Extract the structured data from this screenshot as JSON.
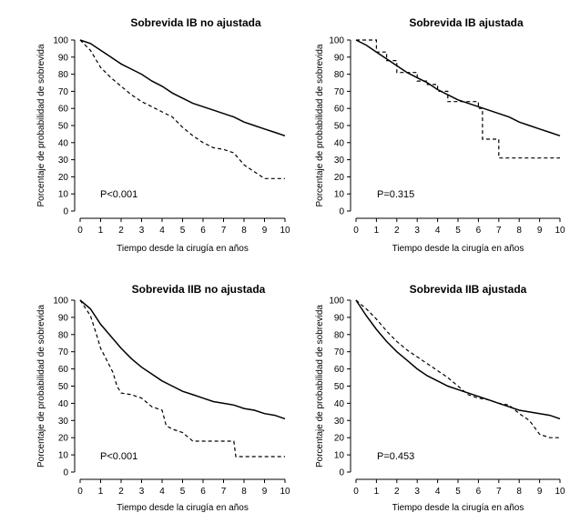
{
  "chart_data": [
    {
      "type": "line",
      "title": "Sobrevida IB no ajustada",
      "xlabel": "Tiempo desde la cirugía en años",
      "ylabel": "Porcentaje de probabilidad de sobrevida",
      "xlim": [
        0,
        10
      ],
      "ylim": [
        0,
        100
      ],
      "x_ticks": [
        0,
        1,
        2,
        3,
        4,
        5,
        6,
        7,
        8,
        9,
        10
      ],
      "y_ticks": [
        0,
        10,
        20,
        30,
        40,
        50,
        60,
        70,
        80,
        90,
        100
      ],
      "annotation": "P<0.001",
      "series": [
        {
          "name": "solid",
          "style": "solid",
          "x": [
            0,
            0.5,
            1,
            1.5,
            2,
            2.5,
            3,
            3.5,
            4,
            4.5,
            5,
            5.5,
            6,
            6.5,
            7,
            7.5,
            8,
            8.5,
            9,
            9.5,
            10
          ],
          "y": [
            100,
            98,
            94,
            90,
            86,
            83,
            80,
            76,
            73,
            69,
            66,
            63,
            61,
            59,
            57,
            55,
            52,
            50,
            48,
            46,
            44
          ]
        },
        {
          "name": "dashed",
          "style": "dashed",
          "x": [
            0,
            0.5,
            1,
            1.5,
            2,
            2.5,
            3,
            3.5,
            4,
            4.5,
            5,
            5.5,
            6,
            6.5,
            7,
            7.5,
            8,
            8.5,
            9,
            9.5,
            10
          ],
          "y": [
            100,
            94,
            84,
            78,
            73,
            68,
            64,
            61,
            58,
            55,
            49,
            44,
            40,
            37,
            36,
            34,
            27,
            23,
            19,
            19,
            19
          ]
        }
      ]
    },
    {
      "type": "line",
      "title": "Sobrevida IB ajustada",
      "xlabel": "Tiempo desde la cirugía en años",
      "ylabel": "Porcentaje de probabilidad de sobrevida",
      "xlim": [
        0,
        10
      ],
      "ylim": [
        0,
        100
      ],
      "x_ticks": [
        0,
        1,
        2,
        3,
        4,
        5,
        6,
        7,
        8,
        9,
        10
      ],
      "y_ticks": [
        0,
        10,
        20,
        30,
        40,
        50,
        60,
        70,
        80,
        90,
        100
      ],
      "annotation": "P=0.315",
      "series": [
        {
          "name": "solid",
          "style": "solid",
          "x": [
            0,
            0.5,
            1,
            1.5,
            2,
            2.5,
            3,
            3.5,
            4,
            4.5,
            5,
            5.5,
            6,
            6.5,
            7,
            7.5,
            8,
            8.5,
            9,
            9.5,
            10
          ],
          "y": [
            100,
            97,
            93,
            89,
            85,
            81,
            78,
            75,
            71,
            68,
            65,
            63,
            61,
            59,
            57,
            55,
            52,
            50,
            48,
            46,
            44
          ]
        },
        {
          "name": "dashed",
          "style": "dashed",
          "x": [
            0,
            1,
            1,
            1.5,
            1.5,
            2,
            2,
            3,
            3,
            3.5,
            3.5,
            4,
            4,
            4.5,
            4.5,
            5,
            5,
            5.5,
            5.5,
            6,
            6,
            6.2,
            6.2,
            7,
            7,
            10
          ],
          "y": [
            100,
            100,
            93,
            93,
            88,
            88,
            81,
            81,
            76,
            76,
            74,
            74,
            70,
            70,
            64,
            64,
            64,
            64,
            64,
            64,
            60,
            60,
            42,
            42,
            31,
            31
          ]
        }
      ]
    },
    {
      "type": "line",
      "title": "Sobrevida IIB no ajustada",
      "xlabel": "Tiempo desde la cirugía en años",
      "ylabel": "Porcentaje de probabilidad de sobrevida",
      "xlim": [
        0,
        10
      ],
      "ylim": [
        0,
        100
      ],
      "x_ticks": [
        0,
        1,
        2,
        3,
        4,
        5,
        6,
        7,
        8,
        9,
        10
      ],
      "y_ticks": [
        0,
        10,
        20,
        30,
        40,
        50,
        60,
        70,
        80,
        90,
        100
      ],
      "annotation": "P<0.001",
      "series": [
        {
          "name": "solid",
          "style": "solid",
          "x": [
            0,
            0.5,
            1,
            1.5,
            2,
            2.5,
            3,
            3.5,
            4,
            4.5,
            5,
            5.5,
            6,
            6.5,
            7,
            7.5,
            8,
            8.5,
            9,
            9.5,
            10
          ],
          "y": [
            100,
            95,
            86,
            79,
            72,
            66,
            61,
            57,
            53,
            50,
            47,
            45,
            43,
            41,
            40,
            39,
            37,
            36,
            34,
            33,
            31
          ]
        },
        {
          "name": "dashed",
          "style": "dashed",
          "x": [
            0,
            0.5,
            0.8,
            1,
            1.3,
            1.6,
            1.8,
            2,
            2.5,
            3,
            3.5,
            4,
            4.2,
            4.5,
            5,
            5.5,
            6,
            6.5,
            7,
            7.5,
            7.6,
            8,
            9,
            10
          ],
          "y": [
            100,
            91,
            80,
            72,
            65,
            58,
            50,
            46,
            45,
            43,
            38,
            36,
            27,
            25,
            23,
            18,
            18,
            18,
            18,
            18,
            9,
            9,
            9,
            9
          ]
        }
      ]
    },
    {
      "type": "line",
      "title": "Sobrevida IIB ajustada",
      "xlabel": "Tiempo desde la cirugía en años",
      "ylabel": "Porcentaje de probabilidad de sobrevida",
      "xlim": [
        0,
        10
      ],
      "ylim": [
        0,
        100
      ],
      "x_ticks": [
        0,
        1,
        2,
        3,
        4,
        5,
        6,
        7,
        8,
        9,
        10
      ],
      "y_ticks": [
        0,
        10,
        20,
        30,
        40,
        50,
        60,
        70,
        80,
        90,
        100
      ],
      "annotation": "P=0.453",
      "series": [
        {
          "name": "solid",
          "style": "solid",
          "x": [
            0,
            0.5,
            1,
            1.5,
            2,
            2.5,
            3,
            3.5,
            4,
            4.5,
            5,
            5.5,
            6,
            6.5,
            7,
            7.5,
            8,
            8.5,
            9,
            9.5,
            10
          ],
          "y": [
            100,
            91,
            83,
            76,
            70,
            65,
            60,
            56,
            53,
            50,
            48,
            46,
            44,
            42,
            40,
            38,
            36,
            35,
            34,
            33,
            31
          ]
        },
        {
          "name": "dashed",
          "style": "dashed",
          "x": [
            0,
            0.5,
            1,
            1.5,
            2,
            2.5,
            3,
            3.5,
            4,
            4.5,
            5,
            5.5,
            6,
            6.5,
            7,
            7.5,
            8,
            8.5,
            9,
            9.5,
            10
          ],
          "y": [
            100,
            95,
            89,
            82,
            76,
            71,
            67,
            63,
            59,
            55,
            50,
            45,
            43,
            42,
            40,
            39,
            34,
            30,
            22,
            20,
            20
          ]
        }
      ]
    }
  ]
}
